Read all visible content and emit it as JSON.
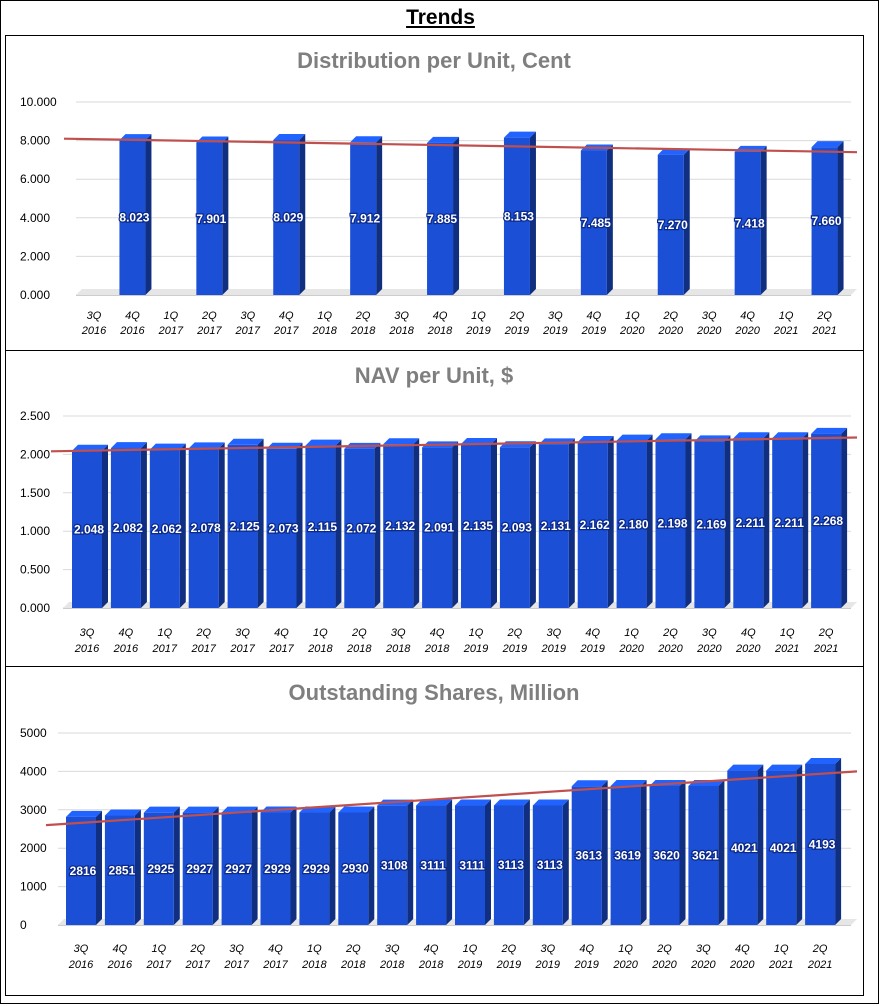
{
  "page": {
    "title": "Trends"
  },
  "chart_data": [
    {
      "type": "bar",
      "title": "Distribution per Unit, Cent",
      "ylim": [
        0,
        10
      ],
      "yticks": [
        "0.000",
        "2.000",
        "4.000",
        "6.000",
        "8.000",
        "10.000"
      ],
      "categories": [
        [
          "3Q",
          "2016"
        ],
        [
          "4Q",
          "2016"
        ],
        [
          "1Q",
          "2017"
        ],
        [
          "2Q",
          "2017"
        ],
        [
          "3Q",
          "2017"
        ],
        [
          "4Q",
          "2017"
        ],
        [
          "1Q",
          "2018"
        ],
        [
          "2Q",
          "2018"
        ],
        [
          "3Q",
          "2018"
        ],
        [
          "4Q",
          "2018"
        ],
        [
          "1Q",
          "2019"
        ],
        [
          "2Q",
          "2019"
        ],
        [
          "3Q",
          "2019"
        ],
        [
          "4Q",
          "2019"
        ],
        [
          "1Q",
          "2020"
        ],
        [
          "2Q",
          "2020"
        ],
        [
          "3Q",
          "2020"
        ],
        [
          "4Q",
          "2020"
        ],
        [
          "1Q",
          "2021"
        ],
        [
          "2Q",
          "2021"
        ]
      ],
      "values": [
        null,
        8.023,
        null,
        7.901,
        null,
        8.029,
        null,
        7.912,
        null,
        7.885,
        null,
        8.153,
        null,
        7.485,
        null,
        7.27,
        null,
        7.418,
        null,
        7.66
      ],
      "labels": [
        "",
        "8.023",
        "",
        "7.901",
        "",
        "8.029",
        "",
        "7.912",
        "",
        "7.885",
        "",
        "8.153",
        "",
        "7.485",
        "",
        "7.270",
        "",
        "7.418",
        "",
        "7.660"
      ],
      "trendline": [
        8.1,
        7.4
      ],
      "grid": true,
      "bar_color": "#1a4fd6",
      "trend_color": "#c0504d"
    },
    {
      "type": "bar",
      "title": "NAV per Unit, $",
      "ylim": [
        0,
        2.5
      ],
      "yticks": [
        "0.000",
        "0.500",
        "1.000",
        "1.500",
        "2.000",
        "2.500"
      ],
      "categories": [
        [
          "3Q",
          "2016"
        ],
        [
          "4Q",
          "2016"
        ],
        [
          "1Q",
          "2017"
        ],
        [
          "2Q",
          "2017"
        ],
        [
          "3Q",
          "2017"
        ],
        [
          "4Q",
          "2017"
        ],
        [
          "1Q",
          "2018"
        ],
        [
          "2Q",
          "2018"
        ],
        [
          "3Q",
          "2018"
        ],
        [
          "4Q",
          "2018"
        ],
        [
          "1Q",
          "2019"
        ],
        [
          "2Q",
          "2019"
        ],
        [
          "3Q",
          "2019"
        ],
        [
          "4Q",
          "2019"
        ],
        [
          "1Q",
          "2020"
        ],
        [
          "2Q",
          "2020"
        ],
        [
          "3Q",
          "2020"
        ],
        [
          "4Q",
          "2020"
        ],
        [
          "1Q",
          "2021"
        ],
        [
          "2Q",
          "2021"
        ]
      ],
      "values": [
        2.048,
        2.082,
        2.062,
        2.078,
        2.125,
        2.073,
        2.115,
        2.072,
        2.132,
        2.091,
        2.135,
        2.093,
        2.131,
        2.162,
        2.18,
        2.198,
        2.169,
        2.211,
        2.211,
        2.268
      ],
      "labels": [
        "2.048",
        "2.082",
        "2.062",
        "2.078",
        "2.125",
        "2.073",
        "2.115",
        "2.072",
        "2.132",
        "2.091",
        "2.135",
        "2.093",
        "2.131",
        "2.162",
        "2.180",
        "2.198",
        "2.169",
        "2.211",
        "2.211",
        "2.268"
      ],
      "trendline": [
        2.04,
        2.22
      ],
      "grid": true,
      "bar_color": "#1a4fd6",
      "trend_color": "#c0504d"
    },
    {
      "type": "bar",
      "title": "Outstanding Shares, Million",
      "ylim": [
        0,
        5000
      ],
      "yticks": [
        "0",
        "1000",
        "2000",
        "3000",
        "4000",
        "5000"
      ],
      "categories": [
        [
          "3Q",
          "2016"
        ],
        [
          "4Q",
          "2016"
        ],
        [
          "1Q",
          "2017"
        ],
        [
          "2Q",
          "2017"
        ],
        [
          "3Q",
          "2017"
        ],
        [
          "4Q",
          "2017"
        ],
        [
          "1Q",
          "2018"
        ],
        [
          "2Q",
          "2018"
        ],
        [
          "3Q",
          "2018"
        ],
        [
          "4Q",
          "2018"
        ],
        [
          "1Q",
          "2019"
        ],
        [
          "2Q",
          "2019"
        ],
        [
          "3Q",
          "2019"
        ],
        [
          "4Q",
          "2019"
        ],
        [
          "1Q",
          "2020"
        ],
        [
          "2Q",
          "2020"
        ],
        [
          "3Q",
          "2020"
        ],
        [
          "4Q",
          "2020"
        ],
        [
          "1Q",
          "2021"
        ],
        [
          "2Q",
          "2021"
        ]
      ],
      "values": [
        2816,
        2851,
        2925,
        2927,
        2927,
        2929,
        2929,
        2930,
        3108,
        3111,
        3111,
        3113,
        3113,
        3613,
        3619,
        3620,
        3621,
        4021,
        4021,
        4193
      ],
      "labels": [
        "2816",
        "2851",
        "2925",
        "2927",
        "2927",
        "2929",
        "2929",
        "2930",
        "3108",
        "3111",
        "3111",
        "3113",
        "3113",
        "3613",
        "3619",
        "3620",
        "3621",
        "4021",
        "4021",
        "4193"
      ],
      "trendline": [
        2600,
        4000
      ],
      "grid": true,
      "bar_color": "#1a4fd6",
      "trend_color": "#c0504d"
    }
  ]
}
